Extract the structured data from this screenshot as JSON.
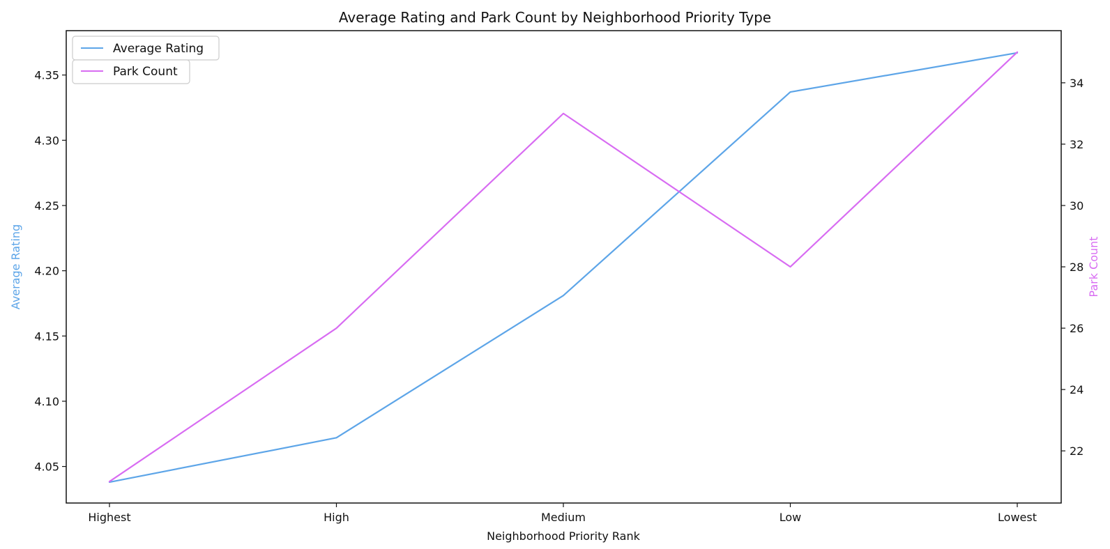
{
  "chart_data": {
    "type": "line",
    "title": "Average Rating and Park Count by Neighborhood Priority Type",
    "xlabel": "Neighborhood Priority Rank",
    "categories": [
      "Highest",
      "High",
      "Medium",
      "Low",
      "Lowest"
    ],
    "left_axis": {
      "label": "Average Rating",
      "ticks": [
        4.05,
        4.1,
        4.15,
        4.2,
        4.25,
        4.3,
        4.35
      ],
      "tick_labels": [
        "4.05",
        "4.10",
        "4.15",
        "4.20",
        "4.25",
        "4.30",
        "4.35"
      ],
      "ylim": [
        4.022,
        4.384
      ]
    },
    "right_axis": {
      "label": "Park Count",
      "ticks": [
        22,
        24,
        26,
        28,
        30,
        32,
        34
      ],
      "tick_labels": [
        "22",
        "24",
        "26",
        "28",
        "30",
        "32",
        "34"
      ],
      "ylim": [
        20.3,
        35.7
      ]
    },
    "series": [
      {
        "name": "Average Rating",
        "axis": "left",
        "color": "#5DA5E8",
        "values": [
          4.038,
          4.072,
          4.181,
          4.337,
          4.367
        ]
      },
      {
        "name": "Park Count",
        "axis": "right",
        "color": "#D86CF2",
        "values": [
          21,
          26,
          33,
          28,
          35
        ]
      }
    ],
    "legend": {
      "placement": "top-left",
      "entries": [
        "Average Rating",
        "Park Count"
      ]
    },
    "grid": false
  },
  "colors": {
    "average_rating": "#5DA5E8",
    "park_count": "#D86CF2",
    "text": "#111111",
    "axis": "#111111"
  }
}
